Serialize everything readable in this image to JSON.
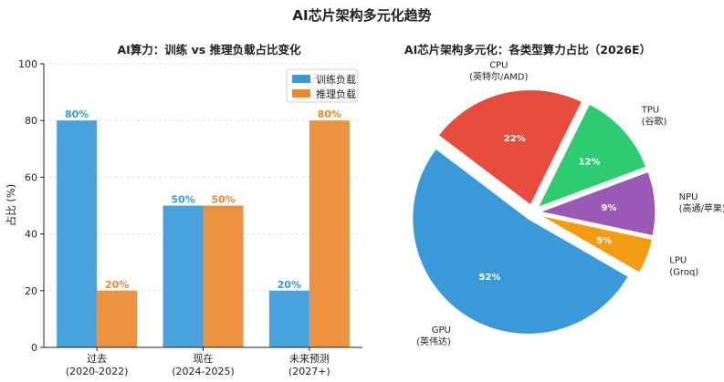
{
  "title": "AI芯片架构多元化趋势",
  "chart_data": [
    {
      "type": "bar",
      "title": "AI算力：训练 vs 推理负载占比变化",
      "ylabel": "占比 (%)",
      "xlabel": "",
      "ylim": [
        0,
        100
      ],
      "yticks": [
        0,
        20,
        40,
        60,
        80,
        100
      ],
      "grid": true,
      "legend_position": "top-right",
      "categories": [
        {
          "line1": "过去",
          "line2": "(2020-2022)"
        },
        {
          "line1": "现在",
          "line2": "(2024-2025)"
        },
        {
          "line1": "未来预测",
          "line2": "(2027+)"
        }
      ],
      "series": [
        {
          "name": "训练负载",
          "color": "#3a9ad9",
          "values": [
            80,
            50,
            20
          ],
          "labels": [
            "80%",
            "50%",
            "20%"
          ]
        },
        {
          "name": "推理负载",
          "color": "#e8892f",
          "values": [
            20,
            50,
            80
          ],
          "labels": [
            "20%",
            "50%",
            "80%"
          ]
        }
      ]
    },
    {
      "type": "pie",
      "title": "AI芯片架构多元化：各类型算力占比（2026E）",
      "slices": [
        {
          "name": "GPU",
          "sub": "(英伟达)",
          "value": 52,
          "pct": "52%",
          "color": "#3a9ad9",
          "explode": true
        },
        {
          "name": "CPU",
          "sub": "(英特尔/AMD)",
          "value": 22,
          "pct": "22%",
          "color": "#e74c3c",
          "explode": true
        },
        {
          "name": "TPU",
          "sub": "(谷歌)",
          "value": 12,
          "pct": "12%",
          "color": "#2ecc71",
          "explode": true
        },
        {
          "name": "NPU",
          "sub": "(高通/苹果)",
          "value": 9,
          "pct": "9%",
          "color": "#9b59b6",
          "explode": true
        },
        {
          "name": "LPU",
          "sub": "(Groq)",
          "value": 5,
          "pct": "5%",
          "color": "#f39c12",
          "explode": true
        }
      ]
    }
  ]
}
